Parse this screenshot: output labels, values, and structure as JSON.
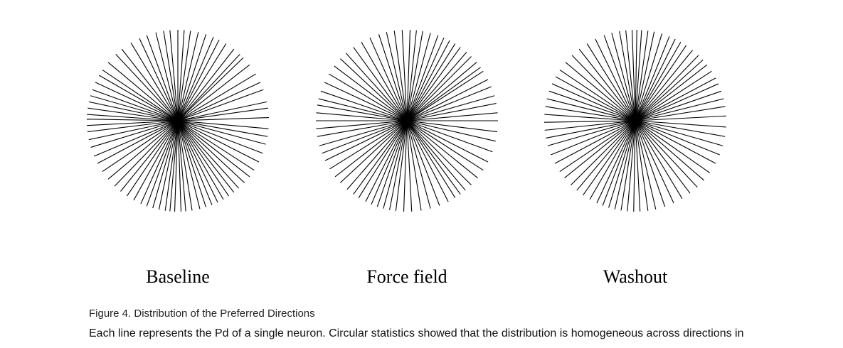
{
  "figure": {
    "panels": [
      {
        "label": "Baseline",
        "angles": [
          2,
          8,
          12,
          20,
          25,
          31,
          38,
          44,
          47,
          52,
          58,
          63,
          67,
          72,
          77,
          82,
          86,
          90,
          95,
          99,
          104,
          110,
          115,
          121,
          128,
          133,
          140,
          146,
          150,
          155,
          160,
          164,
          168,
          172,
          176,
          179,
          183,
          187,
          192,
          197,
          203,
          208,
          214,
          220,
          226,
          231,
          236,
          241,
          246,
          250,
          254,
          258,
          262,
          265,
          268,
          272,
          275,
          279,
          284,
          288,
          292,
          296,
          300,
          304,
          308,
          312,
          317,
          322,
          327,
          333,
          339,
          345,
          350,
          355
        ]
      },
      {
        "label": "Force field",
        "angles": [
          0,
          5,
          11,
          16,
          22,
          27,
          33,
          36,
          40,
          45,
          49,
          54,
          58,
          62,
          66,
          70,
          75,
          80,
          84,
          88,
          93,
          98,
          103,
          108,
          114,
          120,
          126,
          132,
          137,
          143,
          149,
          155,
          161,
          166,
          170,
          175,
          180,
          185,
          190,
          196,
          201,
          206,
          212,
          218,
          223,
          229,
          234,
          238,
          243,
          247,
          251,
          255,
          259,
          263,
          268,
          273,
          279,
          285,
          291,
          297,
          302,
          306,
          310,
          315,
          321,
          327,
          333,
          340,
          347,
          353
        ]
      },
      {
        "label": "Washout",
        "angles": [
          3,
          9,
          14,
          19,
          24,
          28,
          33,
          38,
          42,
          46,
          51,
          56,
          60,
          64,
          68,
          73,
          78,
          82,
          86,
          89,
          92,
          96,
          100,
          105,
          110,
          116,
          122,
          128,
          134,
          140,
          146,
          151,
          156,
          161,
          166,
          171,
          176,
          181,
          186,
          191,
          196,
          202,
          208,
          214,
          219,
          225,
          230,
          235,
          240,
          245,
          249,
          253,
          257,
          261,
          265,
          269,
          273,
          278,
          283,
          289,
          295,
          301,
          307,
          313,
          319,
          325,
          332,
          338,
          344,
          350,
          356
        ]
      }
    ],
    "caption_title": "Figure 4.  Distribution of the Preferred Directions",
    "caption_body": "Each line represents the Pd of a single neuron. Circular statistics showed that the distribution is homogeneous across directions in"
  }
}
